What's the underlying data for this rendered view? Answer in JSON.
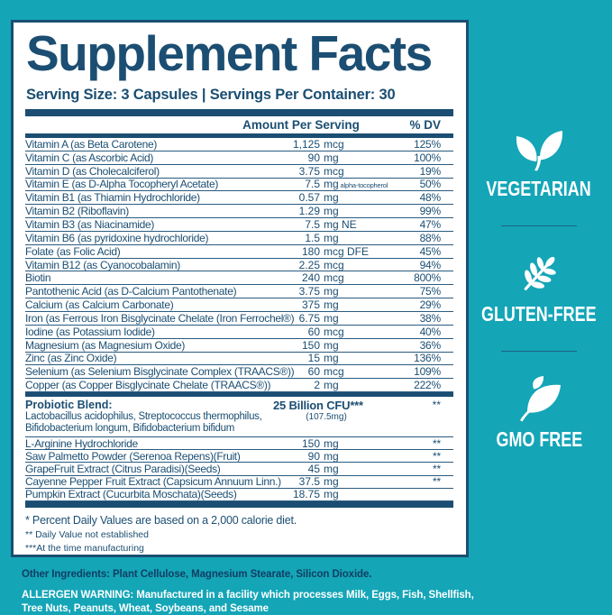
{
  "colors": {
    "teal": "#14a5b7",
    "navy": "#1b4e72",
    "panel": "#ffffff"
  },
  "header": {
    "title": "Supplement Facts",
    "serving_line": "Serving Size: 3 Capsules | Servings Per Container: 30"
  },
  "table": {
    "amount_header": "Amount Per Serving",
    "dv_header": "% DV",
    "rows": [
      {
        "name": "Vitamin A (as Beta Carotene)",
        "val": "1,125",
        "unit": "mcg",
        "dv": "125%"
      },
      {
        "name": "Vitamin C (as Ascorbic Acid)",
        "val": "90",
        "unit": "mg",
        "dv": "100%"
      },
      {
        "name": "Vitamin D (as Cholecalciferol)",
        "val": "3.75",
        "unit": "mcg",
        "dv": "19%"
      },
      {
        "name": "Vitamin E (as D-Alpha Tocopheryl Acetate)",
        "val": "7.5",
        "unit": "mg",
        "note": "alpha-tocopherol",
        "dv": "50%"
      },
      {
        "name": "Vitamin B1 (as Thiamin Hydrochloride)",
        "val": "0.57",
        "unit": "mg",
        "dv": "48%"
      },
      {
        "name": "Vitamin B2 (Riboflavin)",
        "val": "1.29",
        "unit": "mg",
        "dv": "99%"
      },
      {
        "name": "Vitamin B3 (as Niacinamide)",
        "val": "7.5",
        "unit": "mg NE",
        "dv": "47%"
      },
      {
        "name": "Vitamin B6 (as pyridoxine hydrochloride)",
        "val": "1.5",
        "unit": "mg",
        "dv": "88%"
      },
      {
        "name": "Folate (as Folic Acid)",
        "val": "180",
        "unit": "mcg DFE",
        "dv": "45%"
      },
      {
        "name": "Vitamin B12 (as Cyanocobalamin)",
        "val": "2.25",
        "unit": "mcg",
        "dv": "94%"
      },
      {
        "name": "Biotin",
        "val": "240",
        "unit": "mcg",
        "dv": "800%"
      },
      {
        "name": " Pantothenic Acid (as D-Calcium Pantothenate)",
        "val": "3.75",
        "unit": "mg",
        "dv": "75%"
      },
      {
        "name": "Calcium (as Calcium Carbonate)",
        "val": "375",
        "unit": "mg",
        "dv": "29%"
      },
      {
        "name": "Iron (as Ferrous Iron Bisglycinate Chelate (Iron Ferrochel®)",
        "val": "6.75",
        "unit": "mg",
        "dv": "38%"
      },
      {
        "name": "Iodine (as Potassium Iodide)",
        "val": "60",
        "unit": "mcg",
        "dv": "40%"
      },
      {
        "name": "Magnesium (as Magnesium Oxide)",
        "val": "150",
        "unit": "mg",
        "dv": "36%"
      },
      {
        "name": "Zinc (as Zinc Oxide)",
        "val": "15",
        "unit": "mg",
        "dv": "136%"
      },
      {
        "name": "Selenium (as Selenium Bisglycinate Complex (TRAACS®))",
        "val": "60",
        "unit": "mcg",
        "dv": "109%"
      },
      {
        "name": "Copper (as Copper Bisglycinate Chelate (TRAACS®))",
        "val": "2",
        "unit": "mg",
        "dv": "222%"
      }
    ],
    "probiotic": {
      "name": "Probiotic Blend:",
      "desc_line1": "Lactobacillus acidophilus, Streptococcus thermophilus,",
      "desc_line2": "Bifidobacterium longum, Bifidobacterium bifidum",
      "amount": "25 Billion CFU***",
      "amount_sub": "(107.5mg)",
      "dv": "**"
    },
    "extra_rows": [
      {
        "name": "L-Arginine Hydrochloride",
        "val": "150",
        "unit": "mg",
        "dv": "**"
      },
      {
        "name": "Saw Palmetto Powder (Serenoa Repens)(Fruit)",
        "val": "90",
        "unit": "mg",
        "dv": "**"
      },
      {
        "name": "GrapeFruit Extract (Citrus Paradisi)(Seeds)",
        "val": "45",
        "unit": "mg",
        "dv": "**"
      },
      {
        "name": "Cayenne Pepper Fruit Extract (Capsicum Annuum Linn.)",
        "val": "37.5",
        "unit": "mg",
        "dv": "**"
      },
      {
        "name": "Pumpkin Extract (Cucurbita Moschata)(Seeds)",
        "val": "18.75",
        "unit": "mg",
        "dv": ""
      }
    ]
  },
  "footnotes": {
    "line1": "* Percent Daily Values are based on a 2,000 calorie diet.",
    "line2": "** Daily Value not established",
    "line3": "***At the time manufacturing"
  },
  "bottom": {
    "other_label": "Other Ingredients:",
    "other_text": " Plant Cellulose, Magnesium Stearate, Silicon Dioxide.",
    "allergen_label": "ALLERGEN WARNING:",
    "allergen_text": " Manufactured in a facility which processes Milk, Eggs, Fish, Shellfish, Tree Nuts, Peanuts, Wheat, Soybeans, and Sesame"
  },
  "badges": [
    {
      "label": "VEGETARIAN",
      "icon": "sprout-icon"
    },
    {
      "label": "GLUTEN-FREE",
      "icon": "wheat-icon"
    },
    {
      "label": "GMO FREE",
      "icon": "leaf-icon"
    }
  ]
}
